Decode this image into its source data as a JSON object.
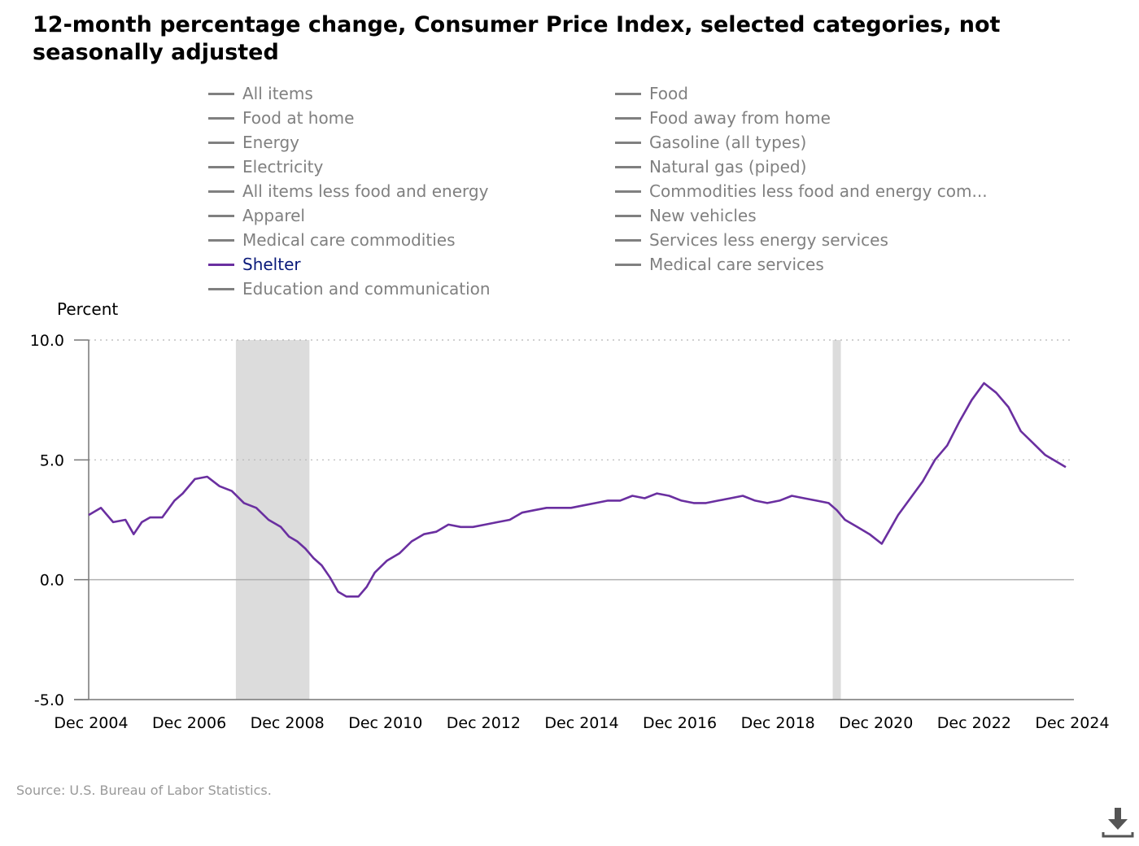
{
  "title": "12-month percentage change, Consumer Price Index, selected categories, not seasonally adjusted",
  "source": "Source: U.S. Bureau of Labor Statistics.",
  "colors": {
    "active": "#6a2fa0",
    "inactive": "#808080",
    "recession": "#dcdcdc"
  },
  "legend": [
    {
      "label": "All items",
      "active": false
    },
    {
      "label": "Food",
      "active": false
    },
    {
      "label": "Food at home",
      "active": false
    },
    {
      "label": "Food away from home",
      "active": false
    },
    {
      "label": "Energy",
      "active": false
    },
    {
      "label": "Gasoline (all types)",
      "active": false
    },
    {
      "label": "Electricity",
      "active": false
    },
    {
      "label": "Natural gas (piped)",
      "active": false
    },
    {
      "label": "All items less food and energy",
      "active": false
    },
    {
      "label": "Commodities less food and energy com...",
      "active": false
    },
    {
      "label": "Apparel",
      "active": false
    },
    {
      "label": "New vehicles",
      "active": false
    },
    {
      "label": "Medical care commodities",
      "active": false
    },
    {
      "label": "Services less energy services",
      "active": false
    },
    {
      "label": "Shelter",
      "active": true
    },
    {
      "label": "Medical care services",
      "active": false
    },
    {
      "label": "Education and communication",
      "active": false
    }
  ],
  "chart_data": {
    "type": "line",
    "title": "12-month percentage change, Consumer Price Index, selected categories, not seasonally adjusted",
    "ylabel": "Percent",
    "xlabel": "",
    "ylim": [
      -5.0,
      10.0
    ],
    "yticks": [
      "10.0",
      "5.0",
      "0.0",
      "-5.0"
    ],
    "xlim": [
      "2004-12",
      "2025-01"
    ],
    "xticks": [
      "Dec 2004",
      "Dec 2006",
      "Dec 2008",
      "Dec 2010",
      "Dec 2012",
      "Dec 2014",
      "Dec 2016",
      "Dec 2018",
      "Dec 2020",
      "Dec 2022",
      "Dec 2024"
    ],
    "grid": "dotted horizontal at 5.0 and 10.0; solid at 0.0",
    "recession_periods": [
      [
        "2007-12",
        "2009-06"
      ],
      [
        "2020-02",
        "2020-04"
      ]
    ],
    "series": [
      {
        "name": "Shelter",
        "points": [
          [
            "2004-12",
            2.7
          ],
          [
            "2005-03",
            3.0
          ],
          [
            "2005-06",
            2.4
          ],
          [
            "2005-09",
            2.5
          ],
          [
            "2005-11",
            1.9
          ],
          [
            "2006-01",
            2.4
          ],
          [
            "2006-03",
            2.6
          ],
          [
            "2006-06",
            2.6
          ],
          [
            "2006-09",
            3.3
          ],
          [
            "2006-11",
            3.6
          ],
          [
            "2007-02",
            4.2
          ],
          [
            "2007-05",
            4.3
          ],
          [
            "2007-08",
            3.9
          ],
          [
            "2007-11",
            3.7
          ],
          [
            "2008-02",
            3.2
          ],
          [
            "2008-05",
            3.0
          ],
          [
            "2008-08",
            2.5
          ],
          [
            "2008-11",
            2.2
          ],
          [
            "2009-01",
            1.8
          ],
          [
            "2009-03",
            1.6
          ],
          [
            "2009-05",
            1.3
          ],
          [
            "2009-07",
            0.9
          ],
          [
            "2009-09",
            0.6
          ],
          [
            "2009-11",
            0.1
          ],
          [
            "2010-01",
            -0.5
          ],
          [
            "2010-03",
            -0.7
          ],
          [
            "2010-06",
            -0.7
          ],
          [
            "2010-08",
            -0.3
          ],
          [
            "2010-10",
            0.3
          ],
          [
            "2011-01",
            0.8
          ],
          [
            "2011-04",
            1.1
          ],
          [
            "2011-07",
            1.6
          ],
          [
            "2011-10",
            1.9
          ],
          [
            "2012-01",
            2.0
          ],
          [
            "2012-04",
            2.3
          ],
          [
            "2012-07",
            2.2
          ],
          [
            "2012-10",
            2.2
          ],
          [
            "2013-01",
            2.3
          ],
          [
            "2013-04",
            2.4
          ],
          [
            "2013-07",
            2.5
          ],
          [
            "2013-10",
            2.8
          ],
          [
            "2014-01",
            2.9
          ],
          [
            "2014-04",
            3.0
          ],
          [
            "2014-07",
            3.0
          ],
          [
            "2014-10",
            3.0
          ],
          [
            "2015-01",
            3.1
          ],
          [
            "2015-04",
            3.2
          ],
          [
            "2015-07",
            3.3
          ],
          [
            "2015-10",
            3.3
          ],
          [
            "2016-01",
            3.5
          ],
          [
            "2016-04",
            3.4
          ],
          [
            "2016-07",
            3.6
          ],
          [
            "2016-10",
            3.5
          ],
          [
            "2017-01",
            3.3
          ],
          [
            "2017-04",
            3.2
          ],
          [
            "2017-07",
            3.2
          ],
          [
            "2017-10",
            3.3
          ],
          [
            "2018-01",
            3.4
          ],
          [
            "2018-04",
            3.5
          ],
          [
            "2018-07",
            3.3
          ],
          [
            "2018-10",
            3.2
          ],
          [
            "2019-01",
            3.3
          ],
          [
            "2019-04",
            3.5
          ],
          [
            "2019-07",
            3.4
          ],
          [
            "2019-10",
            3.3
          ],
          [
            "2020-01",
            3.2
          ],
          [
            "2020-03",
            2.9
          ],
          [
            "2020-05",
            2.5
          ],
          [
            "2020-08",
            2.2
          ],
          [
            "2020-11",
            1.9
          ],
          [
            "2021-02",
            1.5
          ],
          [
            "2021-04",
            2.1
          ],
          [
            "2021-06",
            2.7
          ],
          [
            "2021-09",
            3.4
          ],
          [
            "2021-12",
            4.1
          ],
          [
            "2022-03",
            5.0
          ],
          [
            "2022-06",
            5.6
          ],
          [
            "2022-09",
            6.6
          ],
          [
            "2022-12",
            7.5
          ],
          [
            "2023-03",
            8.2
          ],
          [
            "2023-06",
            7.8
          ],
          [
            "2023-09",
            7.2
          ],
          [
            "2023-12",
            6.2
          ],
          [
            "2024-03",
            5.7
          ],
          [
            "2024-06",
            5.2
          ],
          [
            "2024-09",
            4.9
          ],
          [
            "2024-11",
            4.7
          ]
        ]
      }
    ]
  }
}
